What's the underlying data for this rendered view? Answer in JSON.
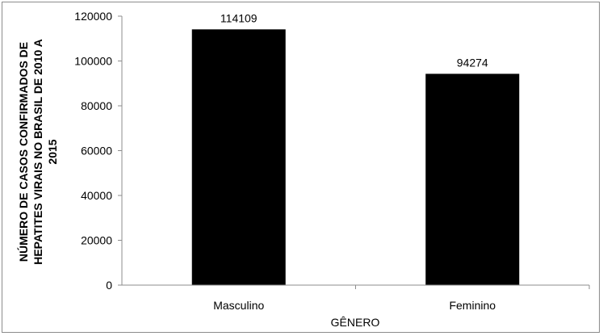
{
  "chart_data": {
    "type": "bar",
    "categories": [
      "Masculino",
      "Feminino"
    ],
    "values": [
      114109,
      94274
    ],
    "data_labels": [
      "114109",
      "94274"
    ],
    "xlabel": "GÊNERO",
    "ylabel_lines": [
      "NÚMERO DE CASOS CONFIRMADOS DE",
      "HEPATITES VIRAIS NO BRASIL DE 2010 A",
      "2015"
    ],
    "ylim": [
      0,
      120000
    ],
    "yticks": [
      "0",
      "20000",
      "40000",
      "60000",
      "80000",
      "100000",
      "120000"
    ],
    "grid": false,
    "legend": "none",
    "bar_color": "#000000"
  }
}
